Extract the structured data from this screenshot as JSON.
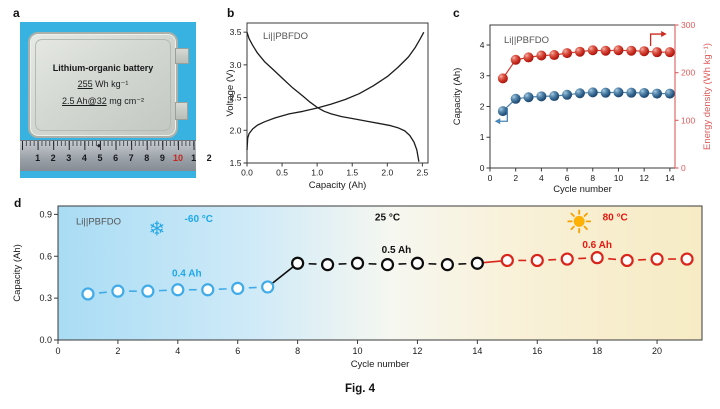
{
  "figure": {
    "caption": "Fig. 4",
    "panels": {
      "a": "a",
      "b": "b",
      "c": "c",
      "d": "d"
    }
  },
  "panel_a": {
    "battery_label_line1": "Lithium-organic battery",
    "battery_value1_underlined": "255",
    "battery_value1_rest": " Wh kg⁻¹",
    "battery_value2_underlined": "2.5 Ah@32",
    "battery_value2_rest": " mg cm⁻²",
    "ruler_numbers": [
      "1",
      "2",
      "3",
      "4",
      "5",
      "6",
      "7",
      "8",
      "9",
      "10",
      "1",
      "2"
    ],
    "ruler_red_index": 9,
    "ruler_center_mark": "◆",
    "colors": {
      "photo_background": "#38b2e0",
      "pouch": "#d4d8d2",
      "ruler": "#9aa0a7"
    }
  },
  "chart_data": [
    {
      "id": "b",
      "type": "line",
      "title_label": "Li||PBFDO",
      "xlabel": "Capacity (Ah)",
      "ylabel": "Voltage (V)",
      "xlim": [
        0,
        2.58
      ],
      "ylim": [
        1.5,
        3.64
      ],
      "xticks": [
        0.0,
        0.5,
        1.0,
        1.5,
        2.0,
        2.5
      ],
      "xtick_labels": [
        "0.0",
        "0.5",
        "1.0",
        "1.5",
        "2.0",
        "2.5"
      ],
      "yticks": [
        1.5,
        2.0,
        2.5,
        3.0,
        3.5
      ],
      "ytick_labels": [
        "1.5",
        "2.0",
        "2.5",
        "3.0",
        "3.5"
      ],
      "series": [
        {
          "name": "discharge",
          "color": "#1d1d1d",
          "points": [
            [
              0,
              3.5
            ],
            [
              0.03,
              3.4
            ],
            [
              0.08,
              3.3
            ],
            [
              0.15,
              3.18
            ],
            [
              0.25,
              3.05
            ],
            [
              0.35,
              2.95
            ],
            [
              0.5,
              2.8
            ],
            [
              0.65,
              2.65
            ],
            [
              0.8,
              2.52
            ],
            [
              0.9,
              2.43
            ],
            [
              1.0,
              2.35
            ],
            [
              1.1,
              2.29
            ],
            [
              1.2,
              2.25
            ],
            [
              1.35,
              2.21
            ],
            [
              1.5,
              2.18
            ],
            [
              1.7,
              2.14
            ],
            [
              1.9,
              2.1
            ],
            [
              2.05,
              2.07
            ],
            [
              2.15,
              2.04
            ],
            [
              2.25,
              1.99
            ],
            [
              2.32,
              1.92
            ],
            [
              2.38,
              1.82
            ],
            [
              2.42,
              1.7
            ],
            [
              2.45,
              1.52
            ]
          ]
        },
        {
          "name": "charge",
          "color": "#1d1d1d",
          "points": [
            [
              0,
              1.7
            ],
            [
              0.01,
              1.88
            ],
            [
              0.03,
              1.95
            ],
            [
              0.08,
              2.02
            ],
            [
              0.15,
              2.08
            ],
            [
              0.25,
              2.13
            ],
            [
              0.4,
              2.19
            ],
            [
              0.6,
              2.25
            ],
            [
              0.8,
              2.29
            ],
            [
              1.0,
              2.34
            ],
            [
              1.2,
              2.4
            ],
            [
              1.4,
              2.47
            ],
            [
              1.6,
              2.56
            ],
            [
              1.8,
              2.68
            ],
            [
              2.0,
              2.82
            ],
            [
              2.15,
              2.96
            ],
            [
              2.3,
              3.12
            ],
            [
              2.4,
              3.27
            ],
            [
              2.47,
              3.4
            ],
            [
              2.52,
              3.5
            ]
          ]
        }
      ]
    },
    {
      "id": "c",
      "type": "scatter-line",
      "title_label": "Li||PBFDO",
      "xlabel": "Cycle number",
      "ylabel_left": "Capacity (Ah)",
      "ylabel_right": "Energy density (Wh kg⁻¹)",
      "xlim": [
        0,
        14.4
      ],
      "ylim_left": [
        0,
        4.65
      ],
      "ylim_right": [
        0,
        300
      ],
      "xticks": [
        0,
        2,
        4,
        6,
        8,
        10,
        12,
        14
      ],
      "yticks_left": [
        0,
        1,
        2,
        3,
        4
      ],
      "yticks_right": [
        0,
        100,
        200,
        300
      ],
      "right_axis_color": "#e06a6a",
      "cycles": [
        1,
        2,
        3,
        4,
        5,
        6,
        7,
        8,
        9,
        10,
        11,
        12,
        13,
        14
      ],
      "series": [
        {
          "name": "capacity",
          "axis": "left",
          "color": "#2a5a84",
          "connector_color": "#4a7da8",
          "values": [
            1.85,
            2.25,
            2.3,
            2.33,
            2.34,
            2.38,
            2.43,
            2.46,
            2.45,
            2.46,
            2.45,
            2.44,
            2.42,
            2.42
          ]
        },
        {
          "name": "energy_density",
          "axis": "right",
          "color": "#c22318",
          "connector_color": "#cc3b30",
          "values": [
            188,
            227,
            232,
            236,
            237,
            241,
            244,
            247,
            246,
            247,
            246,
            245,
            243,
            243
          ]
        }
      ],
      "axis_pointer_left_color": "#4a86b8",
      "axis_pointer_right_color": "#cc2a20"
    },
    {
      "id": "d",
      "type": "scatter-line",
      "title_label": "Li||PBFDO",
      "xlabel": "Cycle number",
      "ylabel": "Capacity (Ah)",
      "xlim": [
        0,
        21.5
      ],
      "ylim": [
        0,
        0.96
      ],
      "xticks": [
        0,
        2,
        4,
        6,
        8,
        10,
        12,
        14,
        16,
        18,
        20
      ],
      "yticks": [
        0.0,
        0.3,
        0.6,
        0.9
      ],
      "ytick_labels": [
        "0.0",
        "0.3",
        "0.6",
        "0.9"
      ],
      "background_gradient": [
        "#a9dcf4",
        "#cfeaf8",
        "#f6f7f0",
        "#f9f1d9",
        "#f6ebc4"
      ],
      "segments": [
        {
          "name": "cold",
          "color": "#41abe8",
          "cycles": [
            1,
            2,
            3,
            4,
            5,
            6,
            7
          ],
          "values": [
            0.33,
            0.35,
            0.35,
            0.36,
            0.36,
            0.37,
            0.38
          ],
          "capacity_label": {
            "text": "0.4 Ah",
            "x": 4.3,
            "y": 0.455,
            "color": "#1fa8e8"
          },
          "temp_label": {
            "text": "-60 °C",
            "x": 4.7,
            "y": 0.845,
            "color": "#1fa8e8"
          },
          "icon": {
            "name": "snowflake",
            "glyph": "❄",
            "x": 3.3,
            "y": 0.8,
            "color": "#29a8e3"
          }
        },
        {
          "name": "room",
          "color": "#0d0d0d",
          "cycles": [
            8,
            9,
            10,
            11,
            12,
            13,
            14
          ],
          "values": [
            0.55,
            0.54,
            0.55,
            0.54,
            0.55,
            0.54,
            0.55
          ],
          "capacity_label": {
            "text": "0.5 Ah",
            "x": 11.3,
            "y": 0.625,
            "color": "#111111"
          },
          "temp_label": {
            "text": "25 °C",
            "x": 11.0,
            "y": 0.855,
            "color": "#111111"
          }
        },
        {
          "name": "hot",
          "color": "#d9251a",
          "cycles": [
            15,
            16,
            17,
            18,
            19,
            20,
            21
          ],
          "values": [
            0.57,
            0.57,
            0.58,
            0.59,
            0.57,
            0.58,
            0.58
          ],
          "capacity_label": {
            "text": "0.6 Ah",
            "x": 18.0,
            "y": 0.66,
            "color": "#e8170e"
          },
          "temp_label": {
            "text": "80 °C",
            "x": 18.6,
            "y": 0.855,
            "color": "#e8170e"
          },
          "icon": {
            "name": "sun",
            "x": 17.4,
            "y": 0.85,
            "color": "#ffb103",
            "ray_color": "#f6a000"
          }
        }
      ]
    }
  ]
}
